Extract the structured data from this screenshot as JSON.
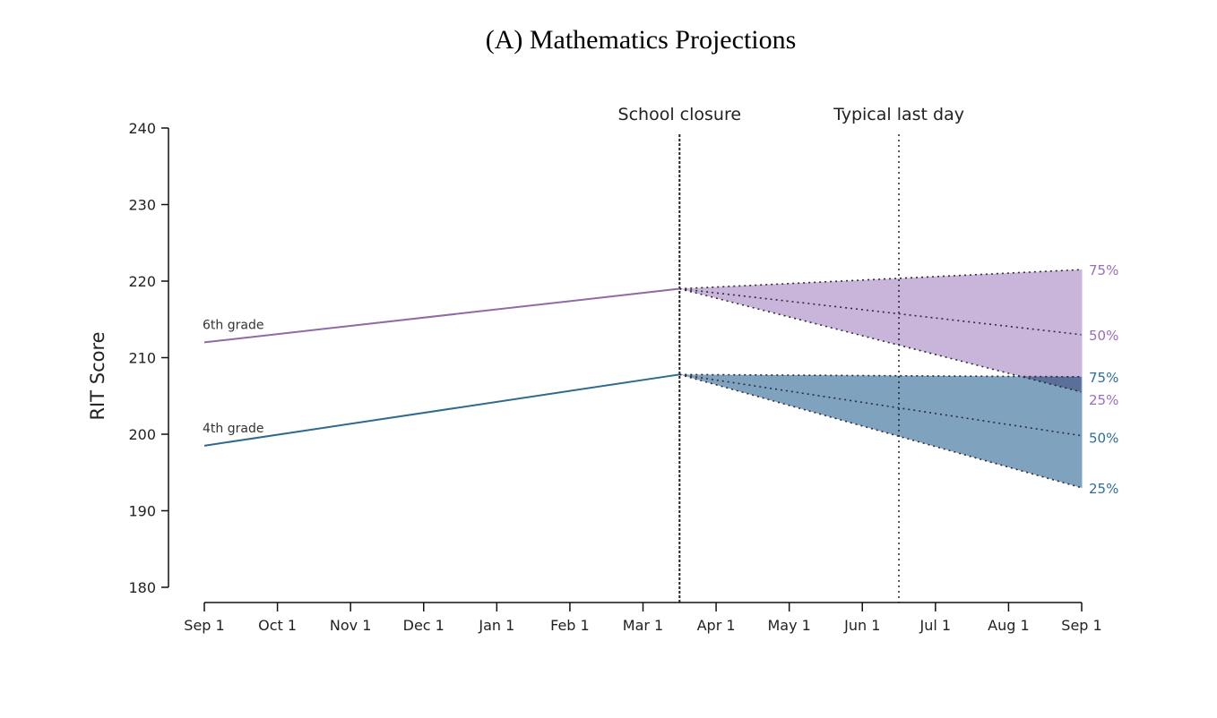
{
  "title": "(A) Mathematics Projections",
  "chart_data": {
    "type": "line",
    "title": "(A) Mathematics Projections",
    "ylabel": "RIT Score",
    "xlabel": "",
    "ylim": [
      180,
      240
    ],
    "yticks": [
      180,
      190,
      200,
      210,
      220,
      230,
      240
    ],
    "xlim": [
      0,
      12
    ],
    "xticks": [
      {
        "x": 0,
        "label": "Sep 1"
      },
      {
        "x": 1,
        "label": "Oct 1"
      },
      {
        "x": 2,
        "label": "Nov 1"
      },
      {
        "x": 3,
        "label": "Dec 1"
      },
      {
        "x": 4,
        "label": "Jan 1"
      },
      {
        "x": 5,
        "label": "Feb 1"
      },
      {
        "x": 6,
        "label": "Mar 1"
      },
      {
        "x": 7,
        "label": "Apr 1"
      },
      {
        "x": 8,
        "label": "May 1"
      },
      {
        "x": 9,
        "label": "Jun 1"
      },
      {
        "x": 10,
        "label": "Jul 1"
      },
      {
        "x": 11,
        "label": "Aug 1"
      },
      {
        "x": 12,
        "label": "Sep 1"
      }
    ],
    "grid": false,
    "vlines": [
      {
        "x": 6.5,
        "label": "School closure"
      },
      {
        "x": 9.5,
        "label": "Typical last day"
      }
    ],
    "series": [
      {
        "name": "6th grade",
        "color": "#8f6aa5",
        "fill": "#c8b5d9",
        "actual": {
          "x": [
            0,
            6.5
          ],
          "y": [
            212,
            219
          ]
        },
        "projections": [
          {
            "label": "75%",
            "x": [
              6.5,
              12
            ],
            "y": [
              219,
              221.5
            ]
          },
          {
            "label": "50%",
            "x": [
              6.5,
              12
            ],
            "y": [
              219,
              213
            ]
          },
          {
            "label": "25%",
            "x": [
              6.5,
              12
            ],
            "y": [
              219,
              205.5
            ]
          }
        ]
      },
      {
        "name": "4th grade",
        "color": "#2e6a8f",
        "fill": "#7fa2bf",
        "actual": {
          "x": [
            0,
            6.5
          ],
          "y": [
            198.5,
            207.8
          ]
        },
        "projections": [
          {
            "label": "75%",
            "x": [
              6.5,
              12
            ],
            "y": [
              207.8,
              207.5
            ]
          },
          {
            "label": "50%",
            "x": [
              6.5,
              12
            ],
            "y": [
              207.8,
              199.8
            ]
          },
          {
            "label": "25%",
            "x": [
              6.5,
              12
            ],
            "y": [
              207.8,
              193
            ]
          }
        ]
      }
    ],
    "overlap_fill": "#5b6f9b",
    "label_colors": {
      "sixth": "#9a6fb5",
      "fourth": "#2f6f98"
    }
  }
}
